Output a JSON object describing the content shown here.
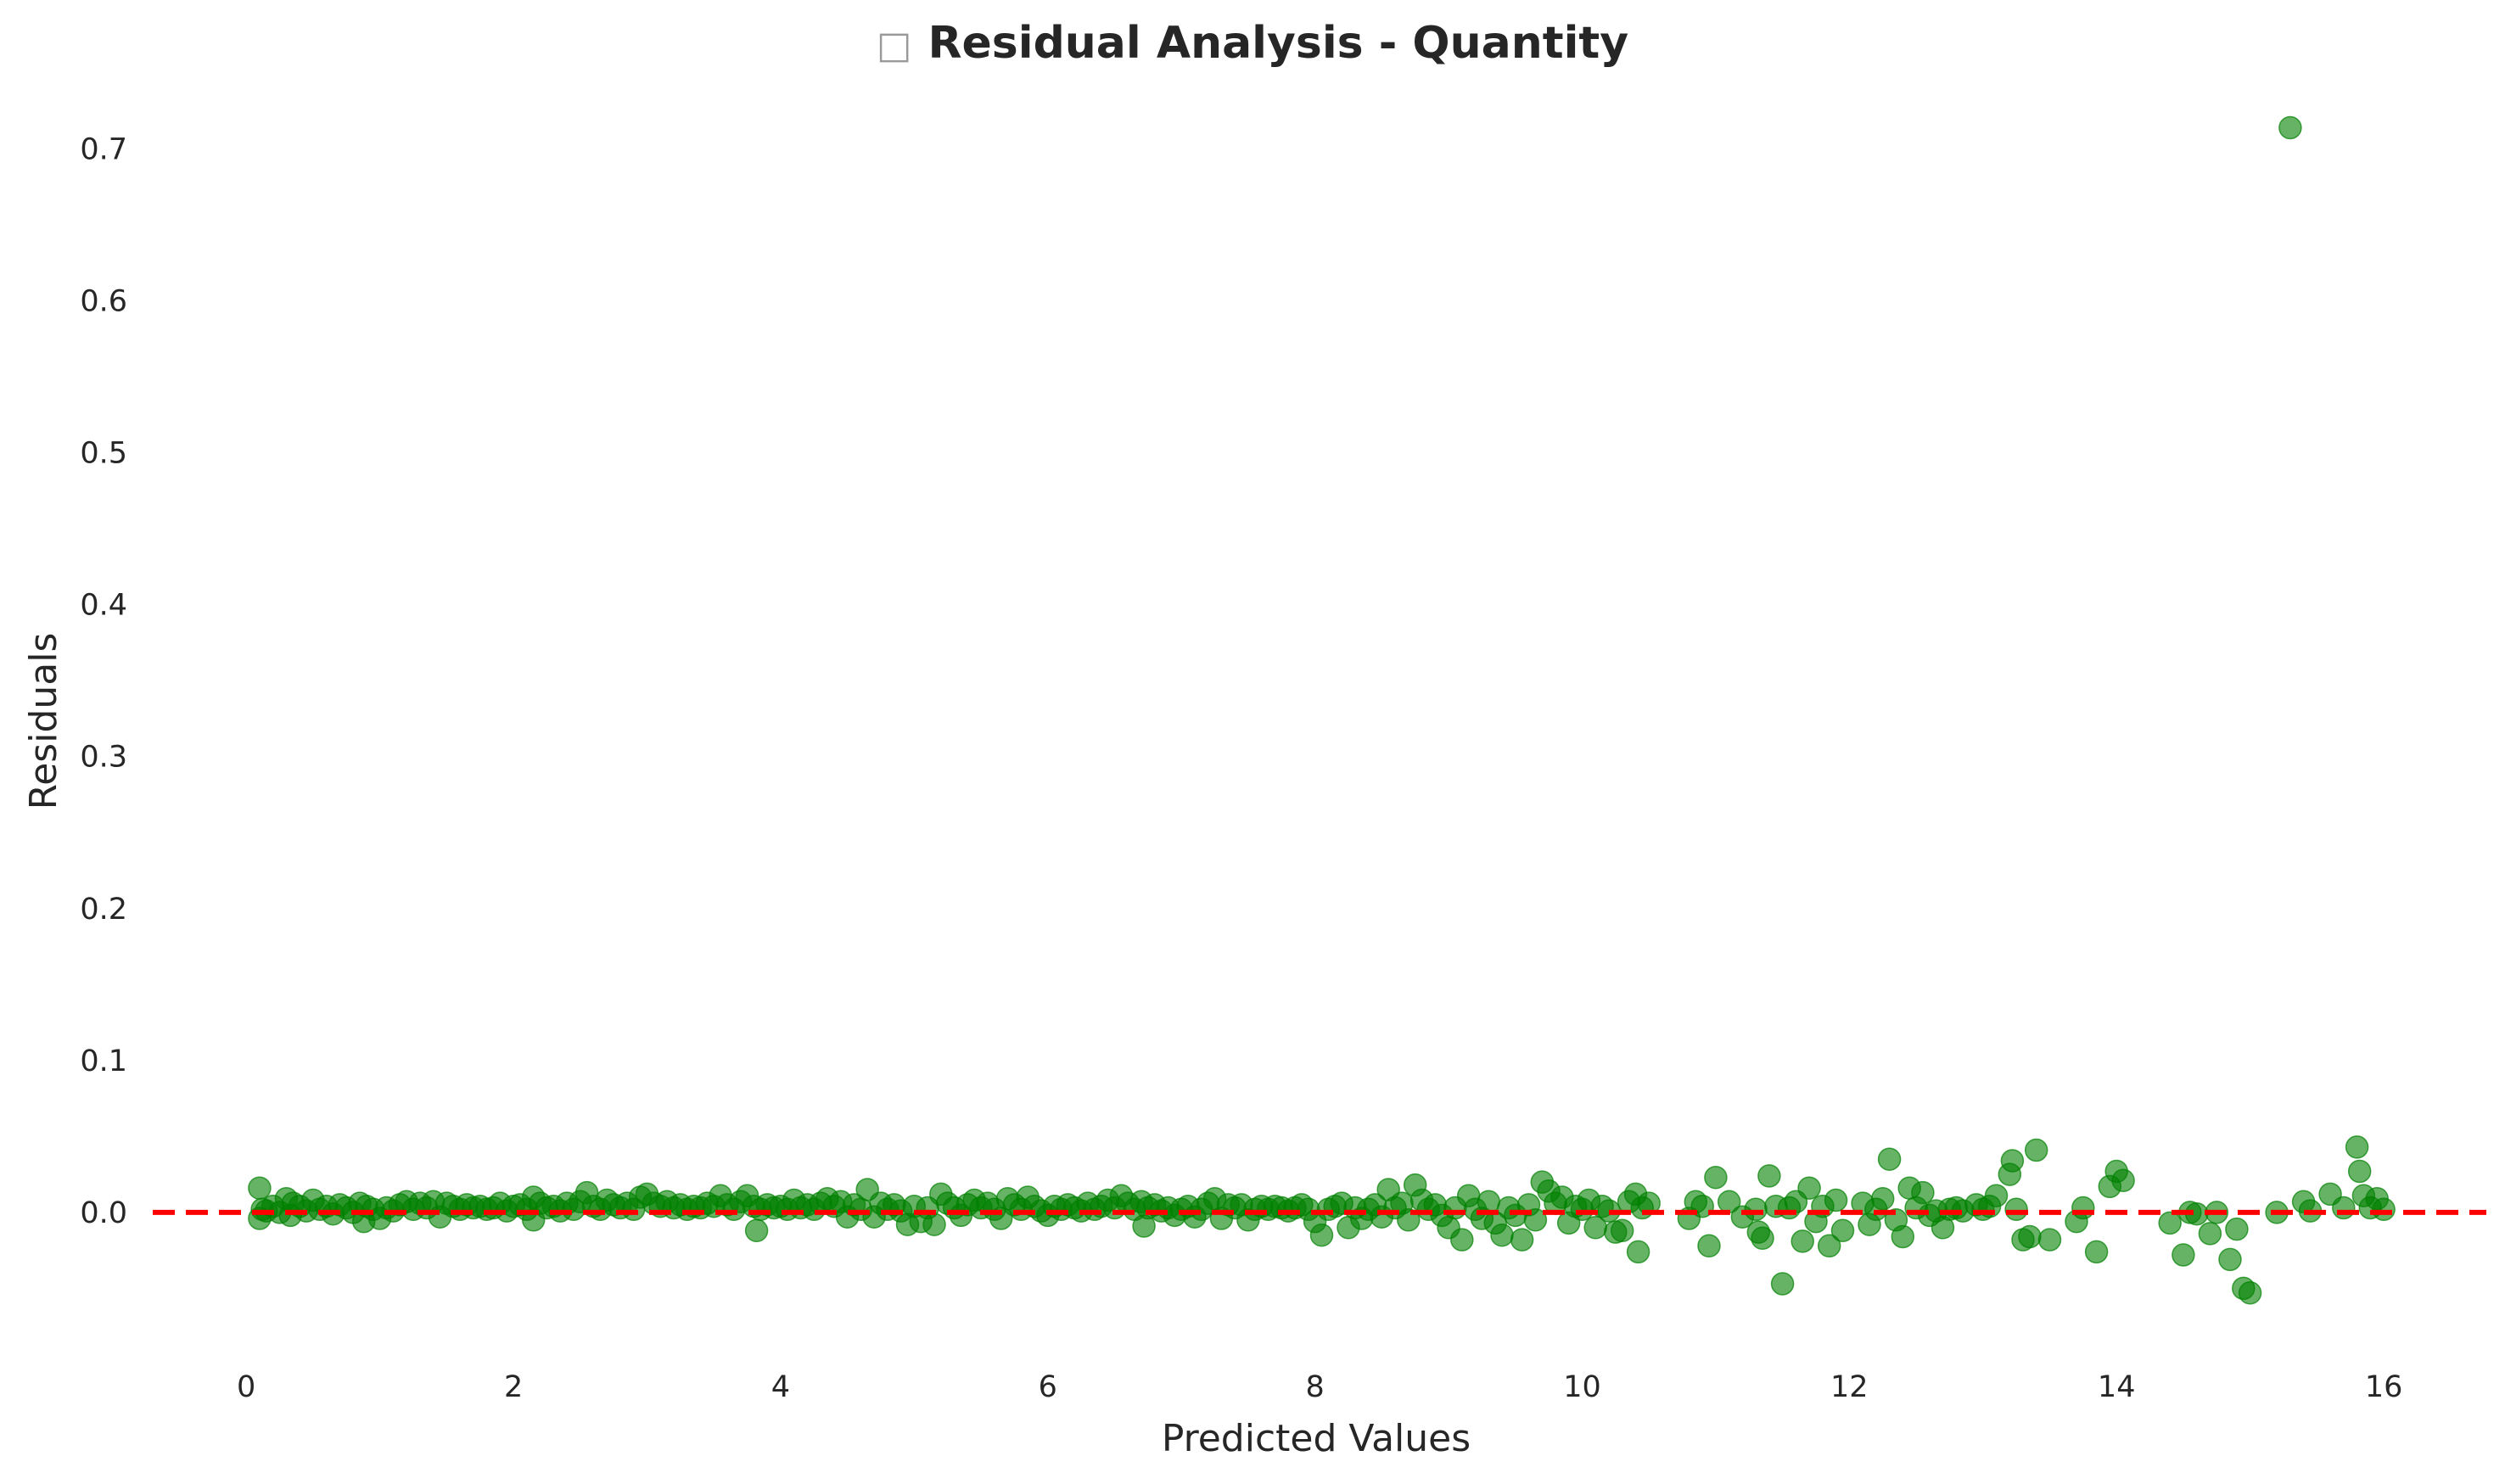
{
  "chart_data": {
    "type": "scatter",
    "title": "Residual Analysis - Quantity",
    "title_icon": "□",
    "xlabel": "Predicted Values",
    "ylabel": "Residuals",
    "xlim": [
      -0.7,
      16.8
    ],
    "ylim": [
      -0.09,
      0.745
    ],
    "xticks": [
      0,
      2,
      4,
      6,
      8,
      10,
      12,
      14,
      16
    ],
    "yticks": [
      0.0,
      0.1,
      0.2,
      0.3,
      0.4,
      0.5,
      0.6,
      0.7
    ],
    "grid": false,
    "legend": "none",
    "point_color": "#008000",
    "reference_line": {
      "y": 0,
      "color": "#ff0000",
      "style": "dashed"
    },
    "series": [
      {
        "points": [
          [
            0.1,
            0.016
          ],
          [
            0.1,
            -0.004
          ],
          [
            0.12,
            0.002
          ],
          [
            0.15,
            0.001
          ],
          [
            0.2,
            0.004
          ],
          [
            0.25,
            0.0
          ],
          [
            0.3,
            0.009
          ],
          [
            0.33,
            -0.002
          ],
          [
            0.35,
            0.006
          ],
          [
            0.4,
            0.004
          ],
          [
            0.45,
            0.001
          ],
          [
            0.5,
            0.008
          ],
          [
            0.55,
            0.002
          ],
          [
            0.6,
            0.004
          ],
          [
            0.65,
            -0.001
          ],
          [
            0.7,
            0.005
          ],
          [
            0.75,
            0.003
          ],
          [
            0.8,
            0.0
          ],
          [
            0.85,
            0.006
          ],
          [
            0.88,
            -0.006
          ],
          [
            0.9,
            0.004
          ],
          [
            0.95,
            0.002
          ],
          [
            1.0,
            -0.004
          ],
          [
            1.05,
            0.003
          ],
          [
            1.1,
            0.001
          ],
          [
            1.15,
            0.005
          ],
          [
            1.2,
            0.007
          ],
          [
            1.25,
            0.002
          ],
          [
            1.3,
            0.006
          ],
          [
            1.35,
            0.003
          ],
          [
            1.4,
            0.007
          ],
          [
            1.45,
            -0.003
          ],
          [
            1.5,
            0.006
          ],
          [
            1.55,
            0.004
          ],
          [
            1.6,
            0.002
          ],
          [
            1.65,
            0.005
          ],
          [
            1.7,
            0.003
          ],
          [
            1.75,
            0.004
          ],
          [
            1.8,
            0.002
          ],
          [
            1.85,
            0.003
          ],
          [
            1.9,
            0.006
          ],
          [
            1.95,
            0.001
          ],
          [
            2.0,
            0.004
          ],
          [
            2.05,
            0.005
          ],
          [
            2.1,
            0.002
          ],
          [
            2.15,
            0.01
          ],
          [
            2.15,
            -0.005
          ],
          [
            2.2,
            0.006
          ],
          [
            2.25,
            0.003
          ],
          [
            2.3,
            0.004
          ],
          [
            2.35,
            0.001
          ],
          [
            2.4,
            0.006
          ],
          [
            2.45,
            0.002
          ],
          [
            2.5,
            0.007
          ],
          [
            2.55,
            0.013
          ],
          [
            2.6,
            0.004
          ],
          [
            2.65,
            0.002
          ],
          [
            2.7,
            0.008
          ],
          [
            2.75,
            0.005
          ],
          [
            2.8,
            0.003
          ],
          [
            2.85,
            0.006
          ],
          [
            2.9,
            0.002
          ],
          [
            2.95,
            0.01
          ],
          [
            3.0,
            0.012
          ],
          [
            3.05,
            0.006
          ],
          [
            3.1,
            0.004
          ],
          [
            3.15,
            0.007
          ],
          [
            3.2,
            0.003
          ],
          [
            3.25,
            0.005
          ],
          [
            3.3,
            0.002
          ],
          [
            3.35,
            0.004
          ],
          [
            3.4,
            0.003
          ],
          [
            3.45,
            0.006
          ],
          [
            3.5,
            0.004
          ],
          [
            3.55,
            0.011
          ],
          [
            3.6,
            0.005
          ],
          [
            3.65,
            0.002
          ],
          [
            3.7,
            0.007
          ],
          [
            3.75,
            0.011
          ],
          [
            3.8,
            0.004
          ],
          [
            3.82,
            -0.012
          ],
          [
            3.85,
            0.002
          ],
          [
            3.9,
            0.005
          ],
          [
            3.95,
            0.003
          ],
          [
            4.0,
            0.004
          ],
          [
            4.05,
            0.002
          ],
          [
            4.1,
            0.008
          ],
          [
            4.15,
            0.003
          ],
          [
            4.2,
            0.005
          ],
          [
            4.25,
            0.002
          ],
          [
            4.3,
            0.006
          ],
          [
            4.35,
            0.009
          ],
          [
            4.4,
            0.004
          ],
          [
            4.45,
            0.007
          ],
          [
            4.5,
            -0.003
          ],
          [
            4.55,
            0.005
          ],
          [
            4.6,
            0.002
          ],
          [
            4.65,
            0.015
          ],
          [
            4.7,
            -0.003
          ],
          [
            4.75,
            0.006
          ],
          [
            4.8,
            0.002
          ],
          [
            4.85,
            0.005
          ],
          [
            4.9,
            0.001
          ],
          [
            4.95,
            -0.008
          ],
          [
            5.0,
            0.004
          ],
          [
            5.05,
            -0.006
          ],
          [
            5.1,
            0.003
          ],
          [
            5.15,
            -0.008
          ],
          [
            5.2,
            0.012
          ],
          [
            5.25,
            0.006
          ],
          [
            5.3,
            0.003
          ],
          [
            5.35,
            -0.002
          ],
          [
            5.4,
            0.005
          ],
          [
            5.45,
            0.008
          ],
          [
            5.5,
            0.003
          ],
          [
            5.55,
            0.006
          ],
          [
            5.6,
            0.002
          ],
          [
            5.65,
            -0.004
          ],
          [
            5.7,
            0.009
          ],
          [
            5.75,
            0.005
          ],
          [
            5.8,
            0.002
          ],
          [
            5.85,
            0.01
          ],
          [
            5.9,
            0.004
          ],
          [
            5.95,
            0.001
          ],
          [
            6.0,
            -0.002
          ],
          [
            6.05,
            0.004
          ],
          [
            6.1,
            0.002
          ],
          [
            6.15,
            0.005
          ],
          [
            6.2,
            0.003
          ],
          [
            6.25,
            0.001
          ],
          [
            6.3,
            0.006
          ],
          [
            6.35,
            0.002
          ],
          [
            6.4,
            0.004
          ],
          [
            6.45,
            0.008
          ],
          [
            6.5,
            0.003
          ],
          [
            6.55,
            0.011
          ],
          [
            6.6,
            0.006
          ],
          [
            6.65,
            0.002
          ],
          [
            6.7,
            0.007
          ],
          [
            6.72,
            -0.009
          ],
          [
            6.75,
            0.003
          ],
          [
            6.8,
            0.005
          ],
          [
            6.85,
            0.001
          ],
          [
            6.9,
            0.003
          ],
          [
            6.95,
            -0.002
          ],
          [
            7.0,
            0.002
          ],
          [
            7.05,
            0.004
          ],
          [
            7.1,
            -0.003
          ],
          [
            7.15,
            0.002
          ],
          [
            7.2,
            0.006
          ],
          [
            7.25,
            0.009
          ],
          [
            7.3,
            -0.004
          ],
          [
            7.35,
            0.005
          ],
          [
            7.4,
            0.003
          ],
          [
            7.45,
            0.005
          ],
          [
            7.5,
            -0.005
          ],
          [
            7.55,
            0.002
          ],
          [
            7.6,
            0.004
          ],
          [
            7.65,
            0.002
          ],
          [
            7.7,
            0.004
          ],
          [
            7.75,
            0.003
          ],
          [
            7.8,
            0.001
          ],
          [
            7.85,
            0.003
          ],
          [
            7.9,
            0.005
          ],
          [
            7.95,
            0.002
          ],
          [
            8.0,
            -0.006
          ],
          [
            8.05,
            -0.015
          ],
          [
            8.1,
            0.002
          ],
          [
            8.15,
            0.004
          ],
          [
            8.2,
            0.006
          ],
          [
            8.25,
            -0.01
          ],
          [
            8.3,
            0.003
          ],
          [
            8.35,
            -0.004
          ],
          [
            8.4,
            0.002
          ],
          [
            8.45,
            0.005
          ],
          [
            8.5,
            -0.003
          ],
          [
            8.55,
            0.015
          ],
          [
            8.6,
            0.003
          ],
          [
            8.65,
            0.006
          ],
          [
            8.7,
            -0.005
          ],
          [
            8.75,
            0.018
          ],
          [
            8.8,
            0.008
          ],
          [
            8.85,
            0.002
          ],
          [
            8.9,
            0.005
          ],
          [
            8.95,
            -0.002
          ],
          [
            9.0,
            -0.01
          ],
          [
            9.05,
            0.003
          ],
          [
            9.1,
            -0.018
          ],
          [
            9.15,
            0.011
          ],
          [
            9.2,
            0.002
          ],
          [
            9.25,
            -0.004
          ],
          [
            9.3,
            0.007
          ],
          [
            9.35,
            -0.007
          ],
          [
            9.4,
            -0.015
          ],
          [
            9.45,
            0.003
          ],
          [
            9.5,
            -0.002
          ],
          [
            9.55,
            -0.018
          ],
          [
            9.6,
            0.005
          ],
          [
            9.65,
            -0.005
          ],
          [
            9.7,
            0.02
          ],
          [
            9.75,
            0.014
          ],
          [
            9.8,
            0.006
          ],
          [
            9.85,
            0.01
          ],
          [
            9.9,
            -0.007
          ],
          [
            9.95,
            0.004
          ],
          [
            10.0,
            0.002
          ],
          [
            10.05,
            0.008
          ],
          [
            10.1,
            -0.01
          ],
          [
            10.15,
            0.004
          ],
          [
            10.2,
            0.001
          ],
          [
            10.25,
            -0.013
          ],
          [
            10.3,
            -0.012
          ],
          [
            10.35,
            0.007
          ],
          [
            10.4,
            0.012
          ],
          [
            10.42,
            -0.026
          ],
          [
            10.45,
            0.003
          ],
          [
            10.5,
            0.006
          ],
          [
            10.8,
            -0.004
          ],
          [
            10.85,
            0.007
          ],
          [
            10.9,
            0.004
          ],
          [
            10.95,
            -0.022
          ],
          [
            11.0,
            0.023
          ],
          [
            11.1,
            0.007
          ],
          [
            11.2,
            -0.003
          ],
          [
            11.3,
            0.002
          ],
          [
            11.32,
            -0.013
          ],
          [
            11.35,
            -0.017
          ],
          [
            11.4,
            0.024
          ],
          [
            11.45,
            0.004
          ],
          [
            11.5,
            -0.047
          ],
          [
            11.55,
            0.003
          ],
          [
            11.6,
            0.007
          ],
          [
            11.65,
            -0.019
          ],
          [
            11.7,
            0.016
          ],
          [
            11.75,
            -0.006
          ],
          [
            11.8,
            0.004
          ],
          [
            11.85,
            -0.022
          ],
          [
            11.9,
            0.008
          ],
          [
            11.95,
            -0.012
          ],
          [
            12.1,
            0.006
          ],
          [
            12.15,
            -0.008
          ],
          [
            12.2,
            0.002
          ],
          [
            12.25,
            0.009
          ],
          [
            12.3,
            0.035
          ],
          [
            12.35,
            -0.005
          ],
          [
            12.4,
            -0.016
          ],
          [
            12.45,
            0.016
          ],
          [
            12.5,
            0.003
          ],
          [
            12.55,
            0.013
          ],
          [
            12.6,
            -0.002
          ],
          [
            12.65,
            0.001
          ],
          [
            12.7,
            -0.01
          ],
          [
            12.75,
            0.002
          ],
          [
            12.8,
            0.003
          ],
          [
            12.85,
            0.001
          ],
          [
            12.95,
            0.005
          ],
          [
            13.0,
            0.002
          ],
          [
            13.05,
            0.004
          ],
          [
            13.1,
            0.011
          ],
          [
            13.2,
            0.025
          ],
          [
            13.22,
            0.034
          ],
          [
            13.25,
            0.002
          ],
          [
            13.3,
            -0.018
          ],
          [
            13.35,
            -0.016
          ],
          [
            13.4,
            0.041
          ],
          [
            13.5,
            -0.018
          ],
          [
            13.7,
            -0.006
          ],
          [
            13.75,
            0.003
          ],
          [
            13.85,
            -0.026
          ],
          [
            13.95,
            0.017
          ],
          [
            14.0,
            0.027
          ],
          [
            14.05,
            0.021
          ],
          [
            14.4,
            -0.007
          ],
          [
            14.5,
            -0.028
          ],
          [
            14.55,
            0.0
          ],
          [
            14.6,
            -0.001
          ],
          [
            14.7,
            -0.014
          ],
          [
            14.75,
            0.0
          ],
          [
            14.85,
            -0.031
          ],
          [
            14.9,
            -0.011
          ],
          [
            14.95,
            -0.05
          ],
          [
            15.0,
            -0.053
          ],
          [
            15.2,
            0.0
          ],
          [
            15.3,
            0.714
          ],
          [
            15.4,
            0.007
          ],
          [
            15.45,
            0.001
          ],
          [
            15.6,
            0.012
          ],
          [
            15.7,
            0.003
          ],
          [
            15.8,
            0.043
          ],
          [
            15.82,
            0.027
          ],
          [
            15.85,
            0.011
          ],
          [
            15.9,
            0.003
          ],
          [
            15.95,
            0.009
          ],
          [
            16.0,
            0.002
          ]
        ]
      }
    ]
  }
}
